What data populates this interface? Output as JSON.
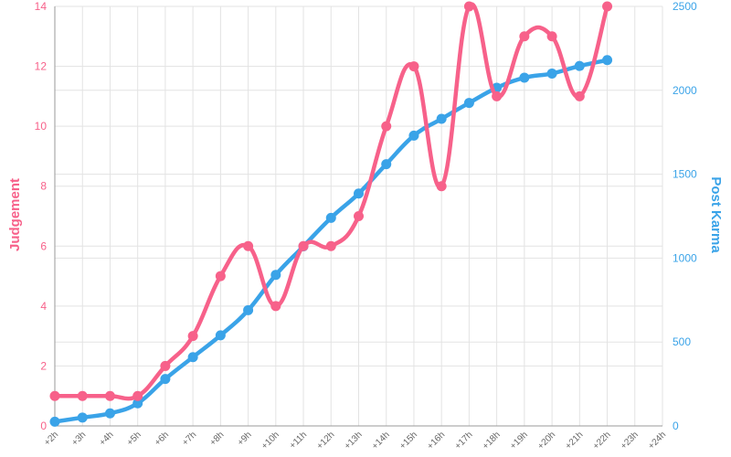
{
  "chart_data": {
    "type": "line",
    "categories": [
      "+2h",
      "+3h",
      "+4h",
      "+5h",
      "+6h",
      "+7h",
      "+8h",
      "+9h",
      "+10h",
      "+11h",
      "+12h",
      "+13h",
      "+14h",
      "+15h",
      "+16h",
      "+17h",
      "+18h",
      "+19h",
      "+20h",
      "+21h",
      "+22h",
      "+23h",
      "+24h"
    ],
    "series": [
      {
        "name": "Judgement",
        "axis": "left",
        "color": "#f7618a",
        "values": [
          1,
          1,
          1,
          1,
          2,
          3,
          5,
          6,
          4,
          6,
          6,
          7,
          10,
          12,
          8,
          14,
          11,
          13,
          13,
          11,
          14,
          null,
          null
        ]
      },
      {
        "name": "Post Karma",
        "axis": "right",
        "color": "#3aa3e8",
        "values": [
          25,
          50,
          75,
          135,
          280,
          410,
          540,
          690,
          900,
          1070,
          1240,
          1385,
          1560,
          1730,
          1830,
          1925,
          2015,
          2075,
          2100,
          2145,
          2180,
          null,
          null
        ]
      }
    ],
    "ylabel_left": "Judgement",
    "ylabel_right": "Post Karma",
    "ylim_left": [
      0,
      14
    ],
    "ylim_right": [
      0,
      2500
    ],
    "yticks_left": [
      "0",
      "2",
      "4",
      "6",
      "8",
      "10",
      "12",
      "14"
    ],
    "yticks_right": [
      "0",
      "500",
      "1000",
      "1500",
      "2000",
      "2500"
    ],
    "grid": true,
    "legend": "none"
  }
}
